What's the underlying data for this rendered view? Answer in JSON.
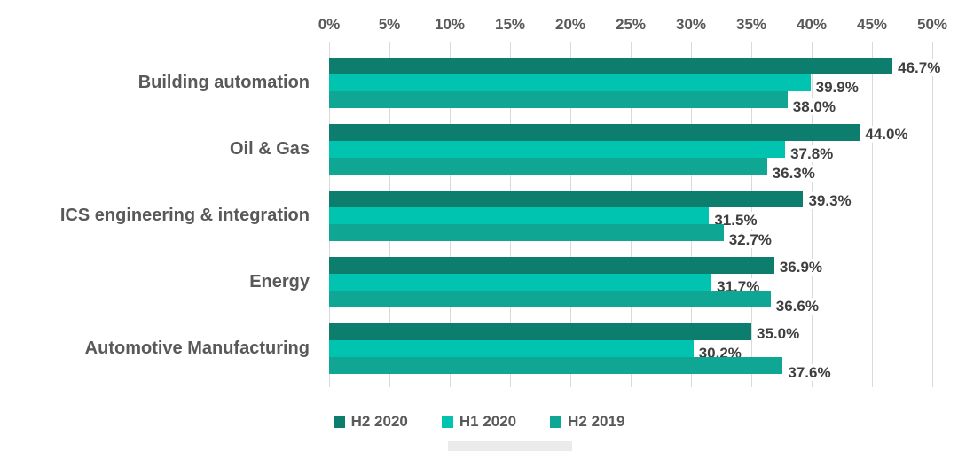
{
  "chart_data": {
    "type": "bar",
    "orientation": "horizontal",
    "title": "",
    "categories": [
      "Building automation",
      "Oil & Gas",
      "ICS engineering & integration",
      "Energy",
      "Automotive Manufacturing"
    ],
    "series": [
      {
        "name": "H2 2020",
        "color": "#0d7d6e",
        "values": [
          46.7,
          44.0,
          39.3,
          36.9,
          35.0
        ]
      },
      {
        "name": "H1 2020",
        "color": "#00c4b0",
        "values": [
          39.9,
          37.8,
          31.5,
          31.7,
          30.2
        ]
      },
      {
        "name": "H2 2019",
        "color": "#0fa693",
        "values": [
          38.0,
          36.3,
          32.7,
          36.6,
          37.6
        ]
      }
    ],
    "value_suffix": "%",
    "value_decimals": 1,
    "xlim": [
      0,
      50
    ],
    "x_tick_values": [
      0,
      5,
      10,
      15,
      20,
      25,
      30,
      35,
      40,
      45,
      50
    ],
    "x_tick_labels": [
      "0%",
      "5%",
      "10%",
      "15%",
      "20%",
      "25%",
      "30%",
      "35%",
      "40%",
      "45%",
      "50%"
    ],
    "axis_position": "top",
    "grid": true,
    "gridline_color": "#d9d9d9",
    "data_labels": true,
    "legend_position": "bottom",
    "legend": [
      "H2 2020",
      "H1 2020",
      "H2 2019"
    ]
  }
}
